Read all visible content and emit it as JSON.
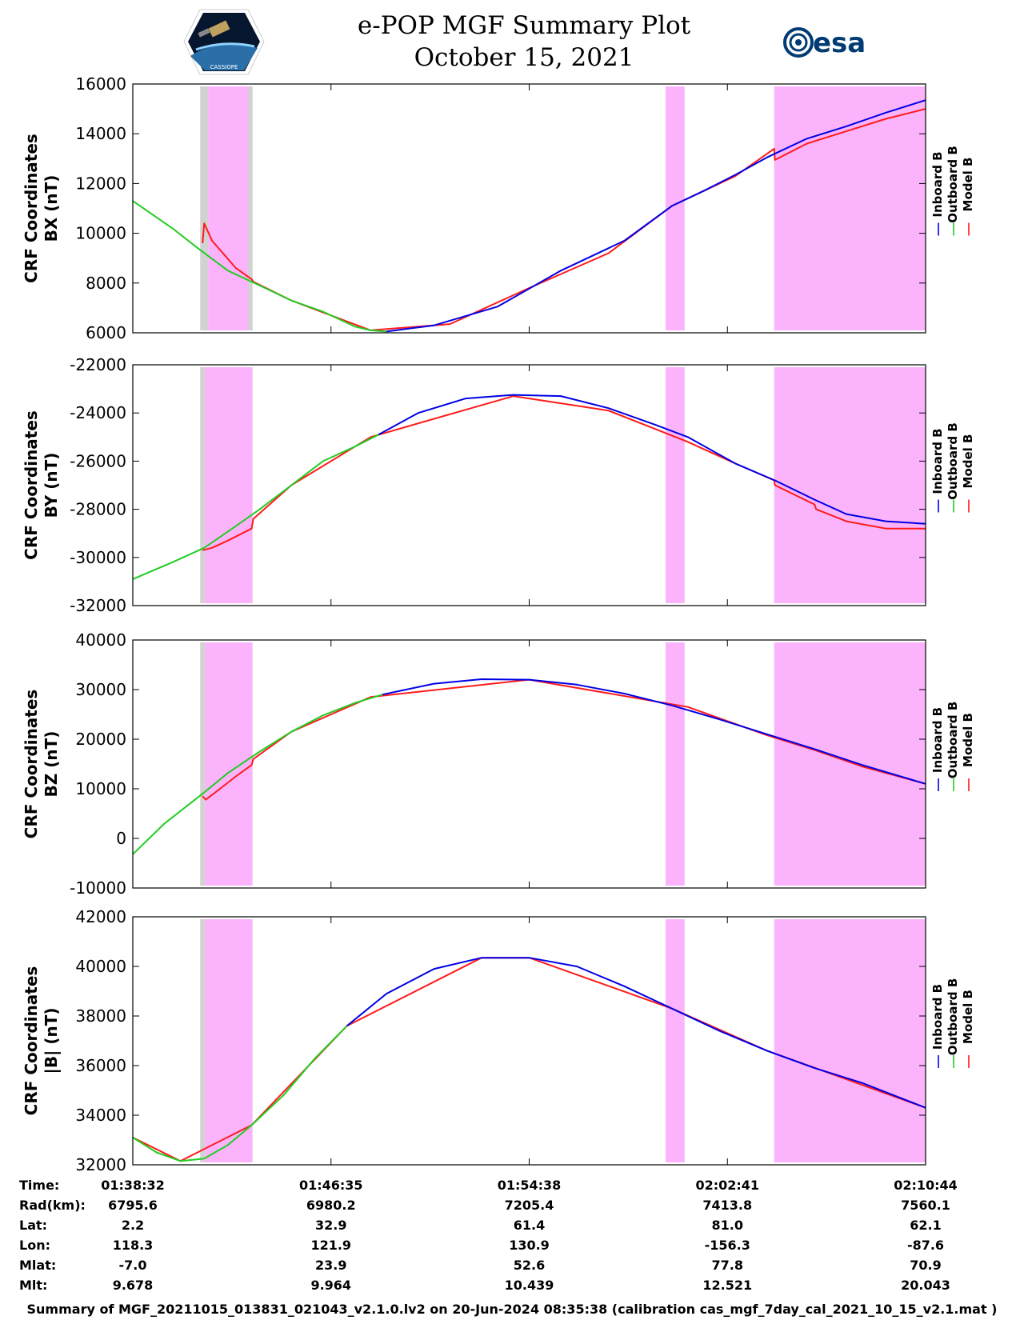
{
  "header": {
    "title_line1": "e-POP MGF Summary Plot",
    "title_line2": "October 15, 2021",
    "left_logo_text": "CASSIOPE",
    "right_logo_text": "esa"
  },
  "footer": {
    "text": "Summary of MGF_20211015_013831_021043_v2.1.0.lv2 on 20-Jun-2024 08:35:38 (calibration cas_mgf_7day_cal_2021_10_15_v2.1.mat )"
  },
  "colors": {
    "inboard": "#0000e6",
    "outboard": "#22cc22",
    "model": "#ff1a1a",
    "magenta_band": "#fbb3fb",
    "gray_band": "#d2d2d2"
  },
  "chart_data": [
    {
      "type": "line",
      "ylabel_line1": "CRF Coordinates",
      "ylabel_line2": "BX (nT)",
      "ylim": [
        6000,
        16000
      ],
      "yticks": [
        "6000",
        "8000",
        "10000",
        "12000",
        "14000",
        "16000"
      ],
      "legend": [
        "Inboard B",
        "Outboard B",
        "Model B"
      ],
      "series": [
        {
          "name": "Outboard B",
          "x": [
            0,
            0.05,
            0.08,
            0.12,
            0.16,
            0.2,
            0.24,
            0.26,
            0.28,
            0.3,
            0.32
          ],
          "values": [
            11300,
            10200,
            9450,
            8500,
            7900,
            7300,
            6850,
            6550,
            6250,
            6100,
            6050
          ]
        },
        {
          "name": "Inboard B",
          "x": [
            0.32,
            0.38,
            0.46,
            0.54,
            0.62,
            0.68,
            0.72,
            0.76,
            0.8,
            0.85,
            0.9,
            0.95,
            1.0
          ],
          "values": [
            6050,
            6300,
            7050,
            8500,
            9700,
            11100,
            11700,
            12350,
            13050,
            13800,
            14300,
            14850,
            15350
          ]
        },
        {
          "name": "Model B",
          "x": [
            0.088,
            0.09,
            0.1,
            0.13,
            0.15,
            0.152,
            0.2,
            0.3,
            0.4,
            0.5,
            0.6,
            0.68,
            0.72,
            0.76,
            0.809,
            0.81,
            0.85,
            0.9,
            0.95,
            1.0
          ],
          "values": [
            9600,
            10400,
            9700,
            8600,
            8150,
            8050,
            7300,
            6100,
            6350,
            7800,
            9200,
            11100,
            11700,
            12300,
            13400,
            12950,
            13600,
            14100,
            14600,
            15000
          ]
        }
      ],
      "bands": [
        {
          "type": "gray",
          "x": [
            0.085,
            0.095
          ]
        },
        {
          "type": "magenta",
          "x": [
            0.095,
            0.151
          ]
        },
        {
          "type": "gray",
          "x": [
            0.145,
            0.151
          ]
        },
        {
          "type": "magenta",
          "x": [
            0.672,
            0.696
          ]
        },
        {
          "type": "magenta",
          "x": [
            0.809,
            1.0
          ]
        }
      ]
    },
    {
      "type": "line",
      "ylabel_line1": "CRF Coordinates",
      "ylabel_line2": "BY (nT)",
      "ylim": [
        -32000,
        -22000
      ],
      "yticks": [
        "-32000",
        "-30000",
        "-28000",
        "-26000",
        "-24000",
        "-22000"
      ],
      "legend": [
        "Inboard B",
        "Outboard B",
        "Model B"
      ],
      "series": [
        {
          "name": "Outboard B",
          "x": [
            0,
            0.05,
            0.09,
            0.13,
            0.16,
            0.2,
            0.24,
            0.28,
            0.31
          ],
          "values": [
            -30900,
            -30200,
            -29600,
            -28700,
            -28000,
            -27000,
            -26000,
            -25400,
            -24900
          ]
        },
        {
          "name": "Inboard B",
          "x": [
            0.31,
            0.36,
            0.42,
            0.48,
            0.54,
            0.6,
            0.66,
            0.7,
            0.76,
            0.81,
            0.86,
            0.9,
            0.95,
            1.0
          ],
          "values": [
            -24900,
            -24000,
            -23400,
            -23250,
            -23300,
            -23800,
            -24500,
            -25000,
            -26100,
            -26800,
            -27600,
            -28200,
            -28500,
            -28600
          ]
        },
        {
          "name": "Model B",
          "x": [
            0.088,
            0.1,
            0.12,
            0.15,
            0.152,
            0.2,
            0.3,
            0.48,
            0.6,
            0.7,
            0.76,
            0.809,
            0.81,
            0.86,
            0.862,
            0.9,
            0.95,
            1.0
          ],
          "values": [
            -29700,
            -29600,
            -29300,
            -28800,
            -28400,
            -27000,
            -25000,
            -23300,
            -23900,
            -25200,
            -26100,
            -26800,
            -27000,
            -27800,
            -28000,
            -28500,
            -28800,
            -28800
          ]
        }
      ],
      "bands": [
        {
          "type": "gray",
          "x": [
            0.085,
            0.091
          ]
        },
        {
          "type": "magenta",
          "x": [
            0.091,
            0.151
          ]
        },
        {
          "type": "magenta",
          "x": [
            0.672,
            0.696
          ]
        },
        {
          "type": "magenta",
          "x": [
            0.809,
            1.0
          ]
        }
      ]
    },
    {
      "type": "line",
      "ylabel_line1": "CRF Coordinates",
      "ylabel_line2": "BZ (nT)",
      "ylim": [
        -10000,
        40000
      ],
      "yticks": [
        "-10000",
        "0",
        "10000",
        "20000",
        "30000",
        "40000"
      ],
      "legend": [
        "Inboard B",
        "Outboard B",
        "Model B"
      ],
      "series": [
        {
          "name": "Outboard B",
          "x": [
            0,
            0.04,
            0.088,
            0.12,
            0.16,
            0.2,
            0.24,
            0.28,
            0.315
          ],
          "values": [
            -3200,
            3000,
            9000,
            13200,
            17500,
            21500,
            24800,
            27300,
            29000
          ]
        },
        {
          "name": "Inboard B",
          "x": [
            0.315,
            0.38,
            0.44,
            0.5,
            0.56,
            0.62,
            0.68,
            0.74,
            0.8,
            0.86,
            0.92,
            1.0
          ],
          "values": [
            29000,
            31200,
            32100,
            32000,
            31000,
            29200,
            26800,
            24000,
            21000,
            18000,
            14800,
            11000
          ]
        },
        {
          "name": "Model B",
          "x": [
            0.088,
            0.092,
            0.11,
            0.13,
            0.15,
            0.152,
            0.2,
            0.3,
            0.5,
            0.7,
            0.8,
            0.86,
            0.92,
            1.0
          ],
          "values": [
            8500,
            7800,
            10000,
            12500,
            14800,
            16000,
            21500,
            28500,
            32000,
            26500,
            20800,
            17800,
            14500,
            11000
          ]
        }
      ],
      "bands": [
        {
          "type": "gray",
          "x": [
            0.085,
            0.091
          ]
        },
        {
          "type": "magenta",
          "x": [
            0.091,
            0.151
          ]
        },
        {
          "type": "magenta",
          "x": [
            0.672,
            0.696
          ]
        },
        {
          "type": "magenta",
          "x": [
            0.809,
            1.0
          ]
        }
      ]
    },
    {
      "type": "line",
      "ylabel_line1": "CRF Coordinates",
      "ylabel_line2": "|B| (nT)",
      "ylim": [
        32000,
        42000
      ],
      "yticks": [
        "32000",
        "34000",
        "36000",
        "38000",
        "40000",
        "42000"
      ],
      "legend": [
        "Inboard B",
        "Outboard B",
        "Model B"
      ],
      "series": [
        {
          "name": "Outboard B",
          "x": [
            0,
            0.03,
            0.06,
            0.09,
            0.12,
            0.15,
            0.19,
            0.23,
            0.27
          ],
          "values": [
            33100,
            32500,
            32150,
            32250,
            32800,
            33600,
            34800,
            36300,
            37600
          ]
        },
        {
          "name": "Inboard B",
          "x": [
            0.27,
            0.32,
            0.38,
            0.44,
            0.5,
            0.56,
            0.62,
            0.68,
            0.74,
            0.8,
            0.86,
            0.92,
            1.0
          ],
          "values": [
            37600,
            38900,
            39900,
            40350,
            40350,
            40000,
            39200,
            38300,
            37400,
            36600,
            35900,
            35300,
            34300
          ]
        },
        {
          "name": "Model B",
          "x": [
            0.0,
            0.06,
            0.15,
            0.27,
            0.44,
            0.5,
            0.68,
            0.8,
            1.0
          ],
          "values": [
            33100,
            32150,
            33600,
            37600,
            40350,
            40350,
            38300,
            36600,
            34300
          ]
        }
      ],
      "bands": [
        {
          "type": "gray",
          "x": [
            0.085,
            0.091
          ]
        },
        {
          "type": "magenta",
          "x": [
            0.091,
            0.151
          ]
        },
        {
          "type": "magenta",
          "x": [
            0.672,
            0.696
          ]
        },
        {
          "type": "magenta",
          "x": [
            0.809,
            1.0
          ]
        }
      ]
    }
  ],
  "info_table": {
    "row_labels": [
      "Time:",
      "Rad(km):",
      "Lat:",
      "Lon:",
      "Mlat:",
      "Mlt:"
    ],
    "columns": [
      [
        "01:38:32",
        "6795.6",
        "2.2",
        "118.3",
        "-7.0",
        "9.678"
      ],
      [
        "01:46:35",
        "6980.2",
        "32.9",
        "121.9",
        "23.9",
        "9.964"
      ],
      [
        "01:54:38",
        "7205.4",
        "61.4",
        "130.9",
        "52.6",
        "10.439"
      ],
      [
        "02:02:41",
        "7413.8",
        "81.0",
        "-156.3",
        "77.8",
        "12.521"
      ],
      [
        "02:10:44",
        "7560.1",
        "62.1",
        "-87.6",
        "70.9",
        "20.043"
      ]
    ]
  }
}
